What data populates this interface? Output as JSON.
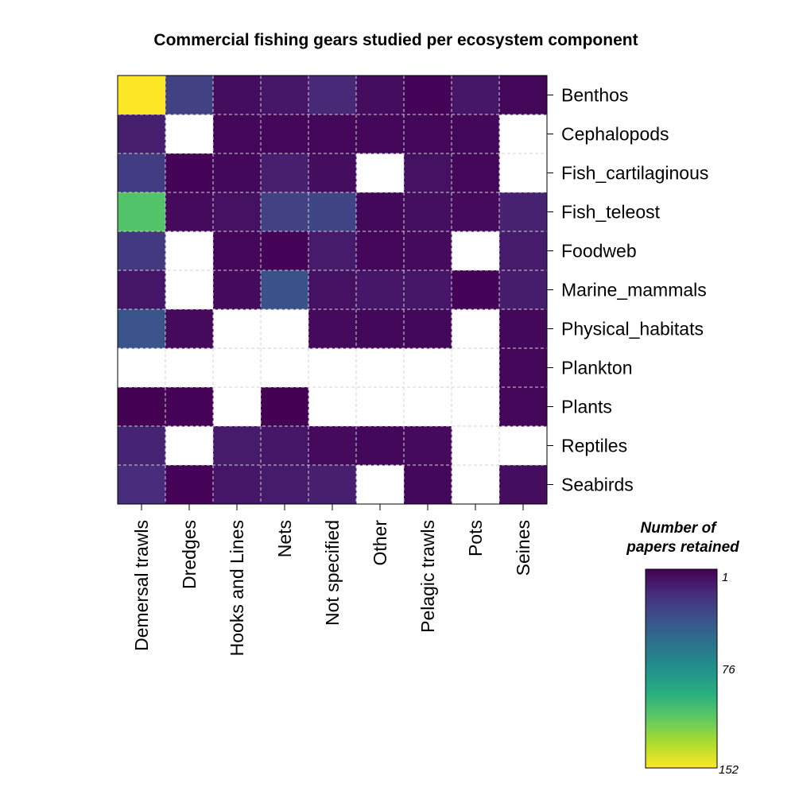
{
  "chart_data": {
    "type": "heatmap",
    "title": "Commercial fishing gears studied per ecosystem component",
    "columns": [
      "Demersal trawls",
      "Dredges",
      "Hooks and Lines",
      "Nets",
      "Not specified",
      "Other",
      "Pelagic trawls",
      "Pots",
      "Seines"
    ],
    "rows": [
      "Benthos",
      "Cephalopods",
      "Fish_cartilaginous",
      "Fish_teleost",
      "Foodweb",
      "Marine_mammals",
      "Physical_habitats",
      "Plankton",
      "Plants",
      "Reptiles",
      "Seabirds"
    ],
    "values": [
      [
        152,
        30,
        6,
        10,
        18,
        6,
        2,
        10,
        3
      ],
      [
        14,
        null,
        3,
        3,
        3,
        3,
        3,
        4,
        null
      ],
      [
        28,
        2,
        4,
        14,
        6,
        null,
        8,
        3,
        null
      ],
      [
        110,
        5,
        8,
        30,
        32,
        4,
        7,
        5,
        15
      ],
      [
        26,
        null,
        3,
        2,
        12,
        3,
        5,
        null,
        12
      ],
      [
        10,
        null,
        5,
        38,
        8,
        10,
        10,
        2,
        13
      ],
      [
        40,
        5,
        null,
        null,
        5,
        4,
        4,
        null,
        4
      ],
      [
        null,
        null,
        null,
        null,
        null,
        null,
        null,
        null,
        3
      ],
      [
        1,
        2,
        null,
        1,
        null,
        null,
        null,
        null,
        3
      ],
      [
        16,
        null,
        12,
        10,
        5,
        4,
        5,
        null,
        null
      ],
      [
        20,
        2,
        10,
        12,
        14,
        null,
        4,
        null,
        6
      ]
    ],
    "color_scale": "viridis-reversed",
    "range": [
      1,
      152
    ],
    "legend": {
      "title_line1": "Number of",
      "title_line2": "papers retained",
      "ticks": [
        "1",
        "76",
        "152"
      ],
      "position": "bottom-right"
    },
    "grid": true
  }
}
